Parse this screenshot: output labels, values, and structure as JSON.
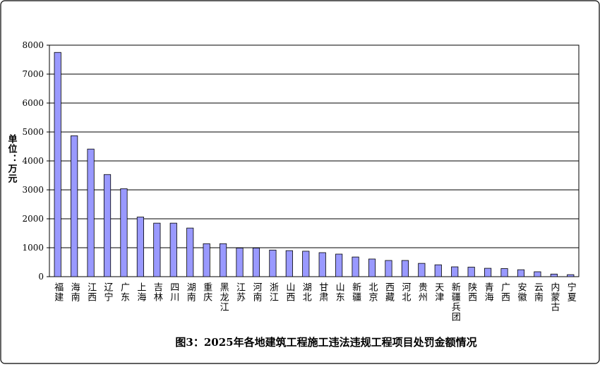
{
  "chart_data": {
    "type": "bar",
    "title": "图3：2025年各地建筑工程施工违法违规工程项目处罚金额情况",
    "y_label": "单位：万元",
    "categories": [
      "福建",
      "海南",
      "江西",
      "辽宁",
      "广东",
      "上海",
      "吉林",
      "四川",
      "湖南",
      "重庆",
      "黑龙江",
      "江苏",
      "河南",
      "浙江",
      "山西",
      "湖北",
      "甘肃",
      "山东",
      "新疆",
      "北京",
      "西藏",
      "河北",
      "贵州",
      "天津",
      "新疆兵团",
      "陕西",
      "青海",
      "广西",
      "安徽",
      "云南",
      "内蒙古",
      "宁夏"
    ],
    "values": [
      7750,
      4870,
      4410,
      3530,
      3040,
      2060,
      1850,
      1850,
      1680,
      1140,
      1140,
      990,
      990,
      920,
      900,
      880,
      830,
      780,
      680,
      610,
      560,
      560,
      460,
      410,
      340,
      330,
      290,
      280,
      240,
      170,
      90,
      70
    ],
    "color": "#9999ff",
    "ylim": [
      0,
      8000
    ],
    "yticks": [
      0,
      1000,
      2000,
      3000,
      4000,
      5000,
      6000,
      7000,
      8000
    ],
    "grid": true
  }
}
